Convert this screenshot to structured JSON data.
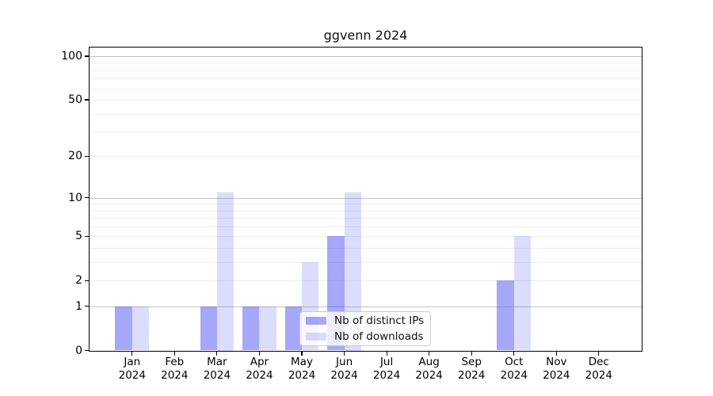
{
  "chart_data": {
    "type": "bar",
    "title": "ggvenn 2024",
    "categories": [
      "Jan",
      "Feb",
      "Mar",
      "Apr",
      "May",
      "Jun",
      "Jul",
      "Aug",
      "Sep",
      "Oct",
      "Nov",
      "Dec"
    ],
    "year": "2024",
    "series": [
      {
        "name": "Nb of distinct IPs",
        "color": "rgba(60,60,240,0.45)",
        "values": [
          1,
          0,
          1,
          1,
          1,
          5,
          0,
          0,
          0,
          2,
          0,
          0
        ]
      },
      {
        "name": "Nb of downloads",
        "color": "rgba(60,60,240,0.18)",
        "values": [
          1,
          0,
          11,
          1,
          3,
          11,
          0,
          0,
          0,
          5,
          0,
          0
        ]
      }
    ],
    "y_axis": {
      "scale": "log1p",
      "ticks": [
        0,
        1,
        2,
        5,
        10,
        20,
        50,
        100
      ],
      "range": [
        0,
        115
      ],
      "gridlines_major": [
        1,
        10,
        100
      ],
      "gridlines_minor": [
        2,
        3,
        4,
        5,
        6,
        7,
        8,
        9,
        20,
        30,
        40,
        50,
        60,
        70,
        80,
        90
      ]
    },
    "xlabel": "",
    "ylabel": "",
    "legend": {
      "position": "lower center"
    },
    "grid": true,
    "colors": {
      "grid_major": "#c4c4c4",
      "grid_minor": "#ededed",
      "axis": "#000000",
      "background": "#ffffff"
    }
  }
}
